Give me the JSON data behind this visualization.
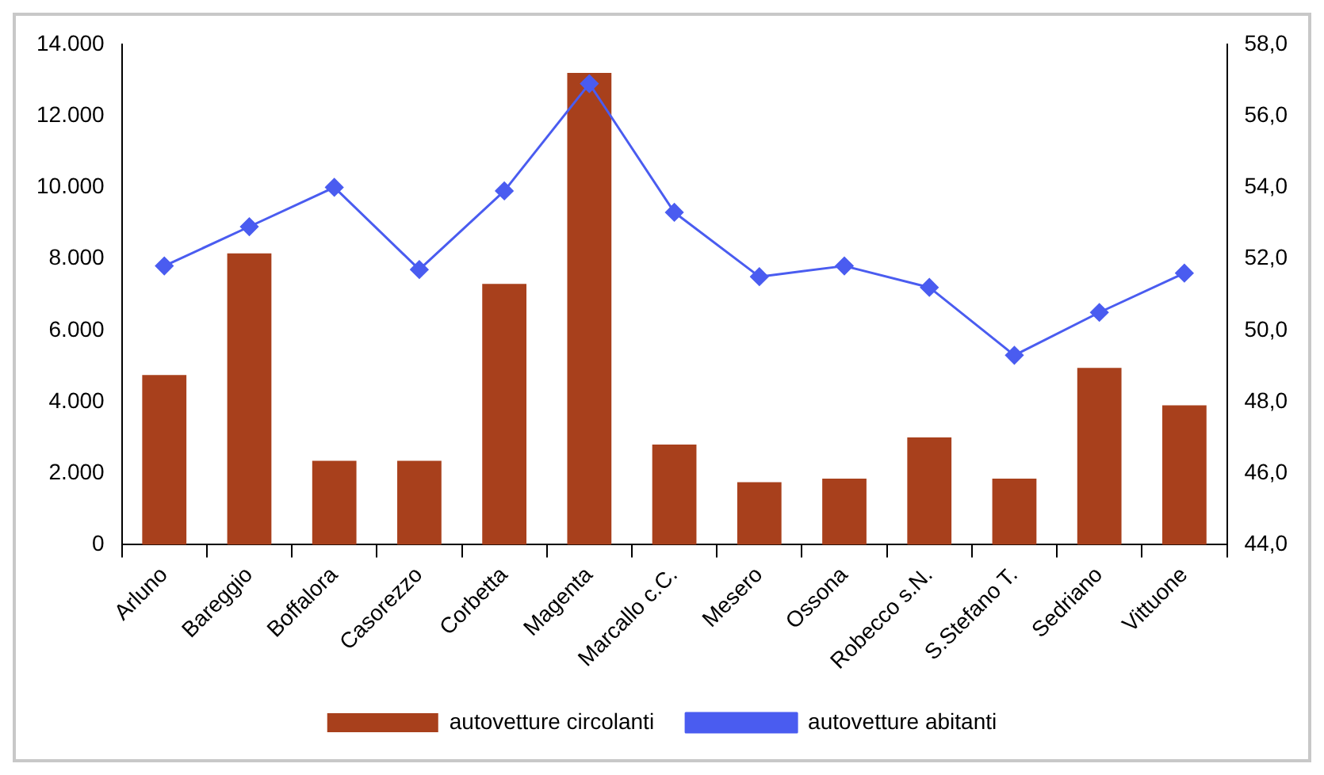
{
  "chart_data": {
    "type": "bar",
    "categories": [
      "Arluno",
      "Bareggio",
      "Boffalora",
      "Casorezzo",
      "Corbetta",
      "Magenta",
      "Marcallo c.C.",
      "Mesero",
      "Ossona",
      "Robecco s.N.",
      "S.Stefano T.",
      "Sedriano",
      "Vittuone"
    ],
    "series": [
      {
        "name": "autovetture circolanti",
        "color": "#a8401c",
        "values": [
          4750,
          8150,
          2350,
          2350,
          7300,
          13200,
          2800,
          1750,
          1850,
          3000,
          1850,
          4950,
          3900
        ]
      },
      {
        "name": "autovetture abitanti",
        "type": "line",
        "axis": "y2",
        "color": "#4a5cf0",
        "values": [
          51.8,
          52.9,
          54.0,
          51.7,
          53.9,
          56.9,
          53.3,
          51.5,
          51.8,
          51.2,
          49.3,
          50.5,
          51.6
        ]
      }
    ],
    "ylim": [
      0,
      14000
    ],
    "yticks": [
      {
        "value": 0,
        "label": "0"
      },
      {
        "value": 2000,
        "label": "2.000"
      },
      {
        "value": 4000,
        "label": "4.000"
      },
      {
        "value": 6000,
        "label": "6.000"
      },
      {
        "value": 8000,
        "label": "8.000"
      },
      {
        "value": 10000,
        "label": "10.000"
      },
      {
        "value": 12000,
        "label": "12.000"
      },
      {
        "value": 14000,
        "label": "14.000"
      }
    ],
    "y2lim": [
      44,
      58
    ],
    "y2ticks": [
      {
        "value": 44,
        "label": "44,0"
      },
      {
        "value": 46,
        "label": "46,0"
      },
      {
        "value": 48,
        "label": "48,0"
      },
      {
        "value": 50,
        "label": "50,0"
      },
      {
        "value": 52,
        "label": "52,0"
      },
      {
        "value": 54,
        "label": "54,0"
      },
      {
        "value": 56,
        "label": "56,0"
      },
      {
        "value": 58,
        "label": "58,0"
      }
    ],
    "grid": false,
    "legend": "bottom",
    "marker": "diamond",
    "line_style": "solid"
  }
}
